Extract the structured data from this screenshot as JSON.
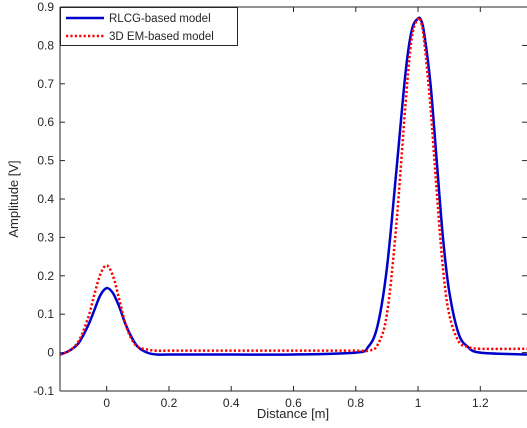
{
  "chart_data": {
    "type": "line",
    "title": "",
    "xlabel": "Distance [m]",
    "ylabel": "Amplitude [V]",
    "xlim": [
      -0.15,
      1.35
    ],
    "ylim": [
      -0.1,
      0.9
    ],
    "xticks": [
      0,
      0.2,
      0.4,
      0.6,
      0.8,
      1,
      1.2
    ],
    "xtick_labels": [
      "0",
      "0.2",
      "0.4",
      "0.6",
      "0.8",
      "1",
      "1.2"
    ],
    "yticks": [
      -0.1,
      0,
      0.1,
      0.2,
      0.3,
      0.4,
      0.5,
      0.6,
      0.7,
      0.8,
      0.9
    ],
    "ytick_labels": [
      "-0.1",
      "0",
      "0.1",
      "0.2",
      "0.3",
      "0.4",
      "0.5",
      "0.6",
      "0.7",
      "0.8",
      "0.9"
    ],
    "grid": false,
    "legend_position": "top-left",
    "series": [
      {
        "name": "RLCG-based model",
        "color": "#0000cc",
        "style": "solid",
        "x": [
          -0.15,
          -0.12,
          -0.09,
          -0.06,
          -0.04,
          -0.02,
          0,
          0.02,
          0.04,
          0.06,
          0.08,
          0.1,
          0.13,
          0.16,
          0.2,
          0.4,
          0.6,
          0.8,
          0.84,
          0.87,
          0.9,
          0.93,
          0.96,
          0.98,
          1.0,
          1.01,
          1.02,
          1.04,
          1.06,
          1.08,
          1.1,
          1.13,
          1.16,
          1.2,
          1.35
        ],
        "y": [
          -0.005,
          0.005,
          0.025,
          0.07,
          0.11,
          0.15,
          0.168,
          0.155,
          0.12,
          0.075,
          0.04,
          0.015,
          0.0,
          -0.005,
          -0.005,
          -0.005,
          -0.005,
          0.0,
          0.015,
          0.07,
          0.22,
          0.47,
          0.73,
          0.84,
          0.87,
          0.865,
          0.83,
          0.7,
          0.5,
          0.3,
          0.16,
          0.05,
          0.015,
          0.0,
          -0.005
        ]
      },
      {
        "name": "3D EM-based model",
        "color": "#ff0000",
        "style": "dotted",
        "x": [
          -0.15,
          -0.12,
          -0.09,
          -0.06,
          -0.04,
          -0.02,
          0,
          0.02,
          0.04,
          0.06,
          0.08,
          0.1,
          0.13,
          0.16,
          0.2,
          0.4,
          0.6,
          0.8,
          0.84,
          0.87,
          0.9,
          0.93,
          0.96,
          0.98,
          1.0,
          1.01,
          1.02,
          1.04,
          1.06,
          1.08,
          1.1,
          1.13,
          1.16,
          1.2,
          1.35
        ],
        "y": [
          -0.005,
          0.005,
          0.03,
          0.09,
          0.15,
          0.205,
          0.227,
          0.2,
          0.14,
          0.075,
          0.035,
          0.015,
          0.008,
          0.005,
          0.005,
          0.005,
          0.005,
          0.005,
          0.005,
          0.02,
          0.1,
          0.33,
          0.65,
          0.82,
          0.87,
          0.86,
          0.81,
          0.64,
          0.42,
          0.22,
          0.1,
          0.03,
          0.015,
          0.01,
          0.01
        ]
      }
    ]
  }
}
